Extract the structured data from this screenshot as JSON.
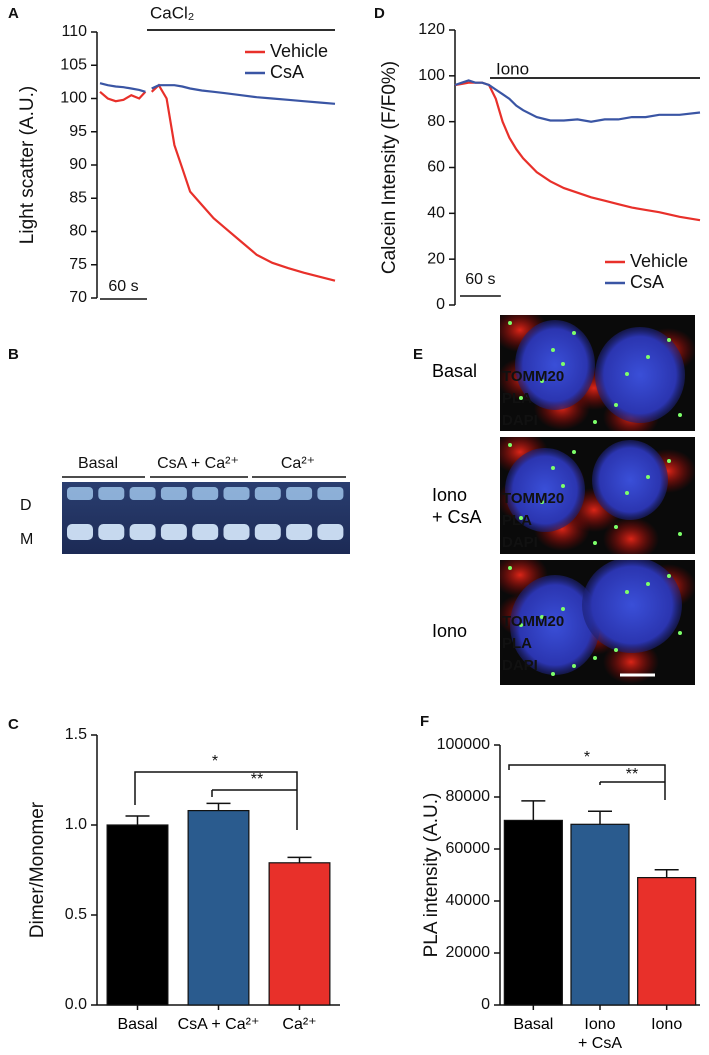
{
  "chart_data": [
    {
      "type": "line",
      "panel": "A",
      "y_label": "Light scatter (A.U.)",
      "annotation": "CaCl₂",
      "scale_bar": {
        "value": 60,
        "label": "60 s"
      },
      "x": [
        0,
        10,
        20,
        30,
        40,
        50,
        58,
        62,
        66,
        75,
        85,
        95,
        105,
        115,
        130,
        145,
        160,
        180,
        200,
        220,
        240,
        260,
        280,
        300
      ],
      "xlim": [
        0,
        300
      ],
      "ylim": [
        70,
        110
      ],
      "yticks": [
        70,
        75,
        80,
        85,
        90,
        95,
        100,
        105,
        110
      ],
      "legend": "upper right",
      "series": [
        {
          "name": "Vehicle",
          "color": "#e8302a",
          "values": [
            101,
            100,
            99.6,
            99.8,
            100.5,
            100,
            101,
            null,
            101,
            102,
            100,
            93,
            89.5,
            86,
            84,
            82,
            80.5,
            78.5,
            76.5,
            75.3,
            74.5,
            73.8,
            73.2,
            72.6
          ]
        },
        {
          "name": "CsA",
          "color": "#3a55a4",
          "values": [
            102.3,
            102,
            101.8,
            101.7,
            101.5,
            101.3,
            101,
            null,
            101.5,
            102,
            102,
            102,
            101.8,
            101.5,
            101.2,
            101,
            100.8,
            100.5,
            100.2,
            100,
            99.8,
            99.6,
            99.4,
            99.2
          ]
        }
      ]
    },
    {
      "type": "line",
      "panel": "D",
      "y_label": "Calcein Intensity (F/F0%)",
      "annotation": "Iono",
      "scale_bar": {
        "value": 60,
        "label": "60 s"
      },
      "x": [
        0,
        10,
        20,
        30,
        40,
        50,
        60,
        70,
        80,
        90,
        100,
        120,
        140,
        160,
        180,
        200,
        220,
        240,
        260,
        280,
        300,
        330,
        360
      ],
      "xlim": [
        0,
        360
      ],
      "ylim": [
        0,
        120
      ],
      "yticks": [
        0,
        20,
        40,
        60,
        80,
        100,
        120
      ],
      "legend": "lower right",
      "series": [
        {
          "name": "Vehicle",
          "color": "#e8302a",
          "values": [
            96,
            96.5,
            97,
            97,
            97,
            96,
            90,
            80,
            73,
            68,
            64,
            58,
            54,
            51,
            49,
            47,
            45.5,
            44,
            42.5,
            41.5,
            40.5,
            38.5,
            37
          ]
        },
        {
          "name": "CsA",
          "color": "#3a55a4",
          "values": [
            96,
            97,
            98,
            97,
            97,
            96,
            94,
            92,
            90,
            87,
            85,
            82,
            80.5,
            80.5,
            81,
            80,
            81,
            81,
            82,
            82,
            83,
            83,
            84
          ]
        }
      ]
    },
    {
      "type": "bar",
      "panel": "C",
      "y_label": "Dimer/Monomer",
      "categories": [
        "Basal",
        "CsA + Ca²⁺",
        "Ca²⁺"
      ],
      "values": [
        1.0,
        1.08,
        0.79
      ],
      "errors": [
        0.05,
        0.04,
        0.03
      ],
      "colors": [
        "#000000",
        "#2a5b8e",
        "#e8302a"
      ],
      "ylim": [
        0,
        1.5
      ],
      "yticks": [
        {
          "value": 0,
          "label": "0.0"
        },
        0.5,
        {
          "value": 1,
          "label": "1.0"
        },
        1.5
      ],
      "annotations": [
        "*",
        "**"
      ]
    },
    {
      "type": "bar",
      "panel": "F",
      "y_label": "PLA intensity (A.U.)",
      "categories": [
        "Basal",
        "Iono\n+ CsA",
        "Iono"
      ],
      "values": [
        71000,
        69500,
        49000
      ],
      "errors": [
        7500,
        5000,
        3000
      ],
      "colors": [
        "#000000",
        "#2a5b8e",
        "#e8302a"
      ],
      "ylim": [
        0,
        100000
      ],
      "yticks": [
        0,
        20000,
        40000,
        60000,
        80000,
        100000
      ],
      "annotations": [
        "*",
        "**"
      ]
    }
  ],
  "gel": {
    "panel": "B",
    "groups": [
      "Basal",
      "CsA + Ca²⁺",
      "Ca²⁺"
    ],
    "rows": [
      "D",
      "M"
    ]
  },
  "micrographs": {
    "panel": "E",
    "conditions": [
      "Basal",
      "Iono\n+ CsA",
      "Iono"
    ],
    "stains": [
      "TOMM20",
      "PLA",
      "DAPI"
    ]
  }
}
